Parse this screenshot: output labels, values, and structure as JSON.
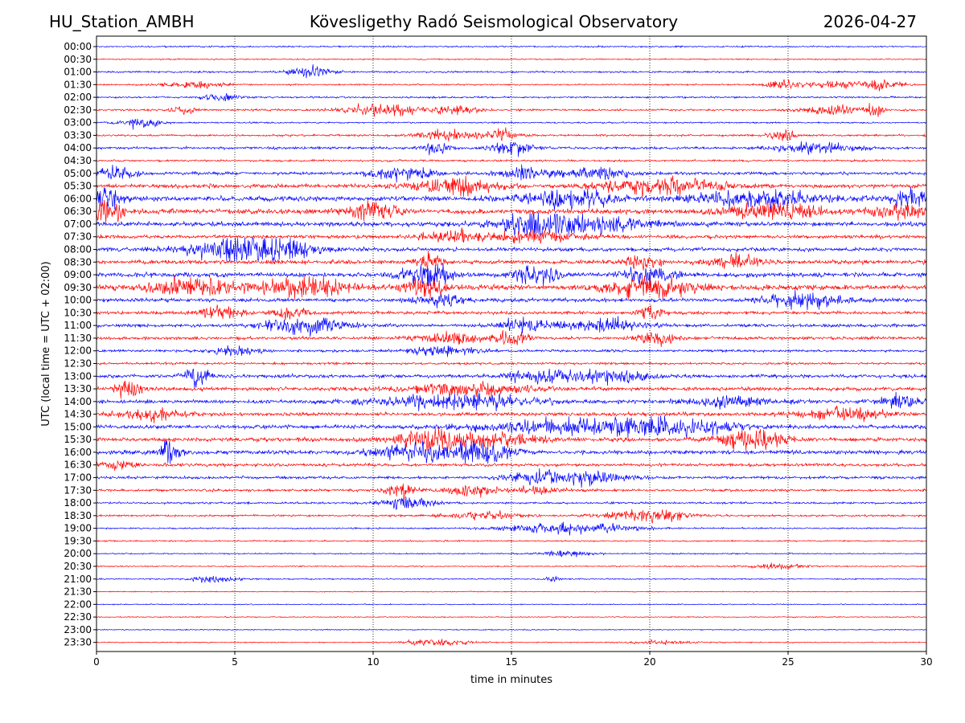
{
  "header": {
    "station": "HU_Station_AMBH",
    "title": "Kövesligethy Radó Seismological Observatory",
    "date": "2026-04-27"
  },
  "colors": {
    "even_row": "#0000ff",
    "odd_row": "#ff0000",
    "axes": "#000000",
    "grid": "#000000"
  },
  "chart_data": {
    "type": "line",
    "title": "Kövesligethy Radó Seismological Observatory",
    "xlabel": "time in minutes",
    "ylabel": "UTC (local time = UTC + 02:00)",
    "xlim": [
      0,
      30
    ],
    "x_ticks": [
      0,
      5,
      10,
      15,
      20,
      25,
      30
    ],
    "x_tick_labels": [
      "0",
      "5",
      "10",
      "15",
      "20",
      "25",
      "30"
    ],
    "grid_x": true,
    "trace_base_amplitude": [
      0.6,
      0.5,
      0.7,
      0.6,
      0.7,
      0.8,
      0.6,
      0.8,
      1.0,
      0.8,
      1.2,
      1.6,
      2.0,
      2.0,
      1.8,
      1.4,
      1.5,
      1.6,
      1.8,
      2.0,
      1.5,
      1.3,
      1.3,
      1.2,
      1.0,
      0.9,
      1.4,
      1.5,
      1.4,
      1.4,
      1.5,
      1.6,
      1.6,
      1.2,
      1.1,
      1.0,
      0.8,
      0.8,
      0.6,
      0.6,
      0.5,
      0.5,
      0.5,
      0.4,
      0.4,
      0.4,
      0.4,
      0.4
    ],
    "traces": [
      {
        "label": "00:00",
        "events": []
      },
      {
        "label": "00:30",
        "events": []
      },
      {
        "label": "01:00",
        "events": [
          [
            7.7,
            0.5,
            3.0
          ]
        ]
      },
      {
        "label": "01:30",
        "events": [
          [
            3.5,
            0.8,
            2.0
          ],
          [
            24.7,
            0.3,
            3.0
          ],
          [
            26.5,
            1.0,
            2.0
          ],
          [
            28.4,
            0.5,
            3.0
          ]
        ]
      },
      {
        "label": "02:00",
        "events": [
          [
            4.5,
            0.5,
            2.0
          ]
        ]
      },
      {
        "label": "02:30",
        "events": [
          [
            3.2,
            0.3,
            2.0
          ],
          [
            10.3,
            0.9,
            3.0
          ],
          [
            13.0,
            0.6,
            2.0
          ],
          [
            26.5,
            0.6,
            3.0
          ],
          [
            28.1,
            0.2,
            3.0
          ]
        ]
      },
      {
        "label": "03:00",
        "events": [
          [
            1.6,
            0.5,
            3.0
          ]
        ]
      },
      {
        "label": "03:30",
        "events": [
          [
            12.6,
            0.6,
            3.0
          ],
          [
            14.6,
            0.5,
            3.0
          ],
          [
            24.8,
            0.3,
            3.0
          ]
        ]
      },
      {
        "label": "04:00",
        "events": [
          [
            12.3,
            0.3,
            3.0
          ],
          [
            15.0,
            0.5,
            3.0
          ],
          [
            26.0,
            1.0,
            2.0
          ]
        ]
      },
      {
        "label": "04:30",
        "events": []
      },
      {
        "label": "05:00",
        "events": [
          [
            11.0,
            0.8,
            2.0
          ],
          [
            15.5,
            0.6,
            2.0
          ],
          [
            18.0,
            0.8,
            2.0
          ],
          [
            0.7,
            0.5,
            2.0
          ]
        ]
      },
      {
        "label": "05:30",
        "events": [
          [
            13.0,
            1.0,
            2.0
          ],
          [
            20.5,
            1.4,
            2.0
          ]
        ]
      },
      {
        "label": "06:00",
        "events": [
          [
            0.3,
            0.4,
            2.0
          ],
          [
            17.0,
            1.2,
            1.6
          ],
          [
            24.0,
            1.5,
            1.6
          ],
          [
            29.4,
            0.4,
            2.0
          ]
        ]
      },
      {
        "label": "06:30",
        "events": [
          [
            0.3,
            0.5,
            2.0
          ],
          [
            10.0,
            0.6,
            1.6
          ],
          [
            24.5,
            1.2,
            1.6
          ],
          [
            29.0,
            0.6,
            1.6
          ]
        ]
      },
      {
        "label": "07:00",
        "events": [
          [
            16.0,
            1.0,
            1.8
          ],
          [
            18.0,
            1.5,
            1.6
          ]
        ]
      },
      {
        "label": "07:30",
        "events": [
          [
            13.0,
            0.8,
            1.6
          ],
          [
            16.0,
            1.0,
            1.6
          ]
        ]
      },
      {
        "label": "08:00",
        "events": [
          [
            5.0,
            1.5,
            2.2
          ],
          [
            6.5,
            1.0,
            2.0
          ]
        ]
      },
      {
        "label": "08:30",
        "events": [
          [
            12.0,
            0.3,
            2.0
          ],
          [
            19.7,
            0.4,
            2.0
          ],
          [
            23.0,
            0.6,
            1.5
          ]
        ]
      },
      {
        "label": "09:00",
        "events": [
          [
            12.0,
            0.6,
            2.5
          ],
          [
            16.0,
            0.6,
            1.8
          ],
          [
            20.0,
            0.6,
            2.0
          ]
        ]
      },
      {
        "label": "09:30",
        "events": [
          [
            3.5,
            1.0,
            1.8
          ],
          [
            7.5,
            1.0,
            2.0
          ],
          [
            12.0,
            0.6,
            2.0
          ],
          [
            20.0,
            1.0,
            2.2
          ]
        ]
      },
      {
        "label": "10:00",
        "events": [
          [
            25.5,
            1.0,
            2.0
          ],
          [
            12.5,
            0.6,
            1.5
          ]
        ]
      },
      {
        "label": "10:30",
        "events": [
          [
            4.5,
            0.6,
            1.8
          ],
          [
            7.0,
            0.4,
            1.8
          ],
          [
            20.0,
            0.3,
            2.0
          ]
        ]
      },
      {
        "label": "11:00",
        "events": [
          [
            7.5,
            1.0,
            2.5
          ],
          [
            18.5,
            1.0,
            1.6
          ],
          [
            15.5,
            0.8,
            1.6
          ]
        ]
      },
      {
        "label": "11:30",
        "events": [
          [
            12.8,
            0.8,
            2.0
          ],
          [
            15.0,
            0.4,
            2.0
          ],
          [
            20.2,
            0.5,
            2.0
          ]
        ]
      },
      {
        "label": "12:00",
        "events": [
          [
            5.0,
            0.6,
            1.6
          ],
          [
            12.5,
            0.8,
            1.6
          ]
        ]
      },
      {
        "label": "12:30",
        "events": []
      },
      {
        "label": "13:00",
        "events": [
          [
            3.6,
            0.3,
            3.0
          ],
          [
            16.0,
            0.8,
            1.6
          ],
          [
            18.5,
            1.0,
            1.6
          ]
        ]
      },
      {
        "label": "13:30",
        "events": [
          [
            1.2,
            0.3,
            2.5
          ],
          [
            13.5,
            1.5,
            1.6
          ]
        ]
      },
      {
        "label": "14:00",
        "events": [
          [
            13.0,
            2.0,
            1.8
          ],
          [
            29.0,
            0.5,
            2.0
          ],
          [
            23.0,
            1.0,
            1.6
          ]
        ]
      },
      {
        "label": "14:30",
        "events": [
          [
            2.0,
            0.8,
            1.5
          ],
          [
            27.0,
            1.2,
            1.5
          ]
        ]
      },
      {
        "label": "15:00",
        "events": [
          [
            17.5,
            2.5,
            1.8
          ],
          [
            21.0,
            1.5,
            1.6
          ]
        ]
      },
      {
        "label": "15:30",
        "events": [
          [
            12.0,
            1.0,
            2.0
          ],
          [
            14.5,
            1.0,
            1.8
          ],
          [
            23.8,
            0.8,
            2.5
          ]
        ]
      },
      {
        "label": "16:00",
        "events": [
          [
            2.6,
            0.3,
            3.0
          ],
          [
            14.0,
            0.8,
            2.5
          ],
          [
            11.5,
            1.0,
            1.8
          ]
        ]
      },
      {
        "label": "16:30",
        "events": [
          [
            0.8,
            0.4,
            1.8
          ]
        ]
      },
      {
        "label": "17:00",
        "events": [
          [
            16.0,
            0.8,
            2.0
          ],
          [
            18.0,
            0.8,
            2.2
          ]
        ]
      },
      {
        "label": "17:30",
        "events": [
          [
            11.0,
            0.4,
            3.0
          ],
          [
            13.5,
            0.6,
            2.2
          ],
          [
            16.0,
            0.5,
            1.8
          ]
        ]
      },
      {
        "label": "18:00",
        "events": [
          [
            11.3,
            0.6,
            3.0
          ]
        ]
      },
      {
        "label": "18:30",
        "events": [
          [
            20.0,
            1.0,
            3.0
          ],
          [
            14.0,
            1.0,
            1.5
          ]
        ]
      },
      {
        "label": "19:00",
        "events": [
          [
            17.2,
            1.6,
            3.5
          ]
        ]
      },
      {
        "label": "19:30",
        "events": []
      },
      {
        "label": "20:00",
        "events": [
          [
            17.0,
            0.6,
            2.5
          ]
        ]
      },
      {
        "label": "20:30",
        "events": [
          [
            24.5,
            0.8,
            1.8
          ]
        ]
      },
      {
        "label": "21:00",
        "events": [
          [
            4.3,
            0.6,
            2.5
          ],
          [
            16.5,
            0.2,
            2.0
          ]
        ]
      },
      {
        "label": "21:30",
        "events": []
      },
      {
        "label": "22:00",
        "events": []
      },
      {
        "label": "22:30",
        "events": []
      },
      {
        "label": "23:00",
        "events": []
      },
      {
        "label": "23:30",
        "events": [
          [
            12.3,
            0.8,
            3.0
          ],
          [
            20.5,
            0.8,
            2.0
          ]
        ]
      }
    ]
  }
}
